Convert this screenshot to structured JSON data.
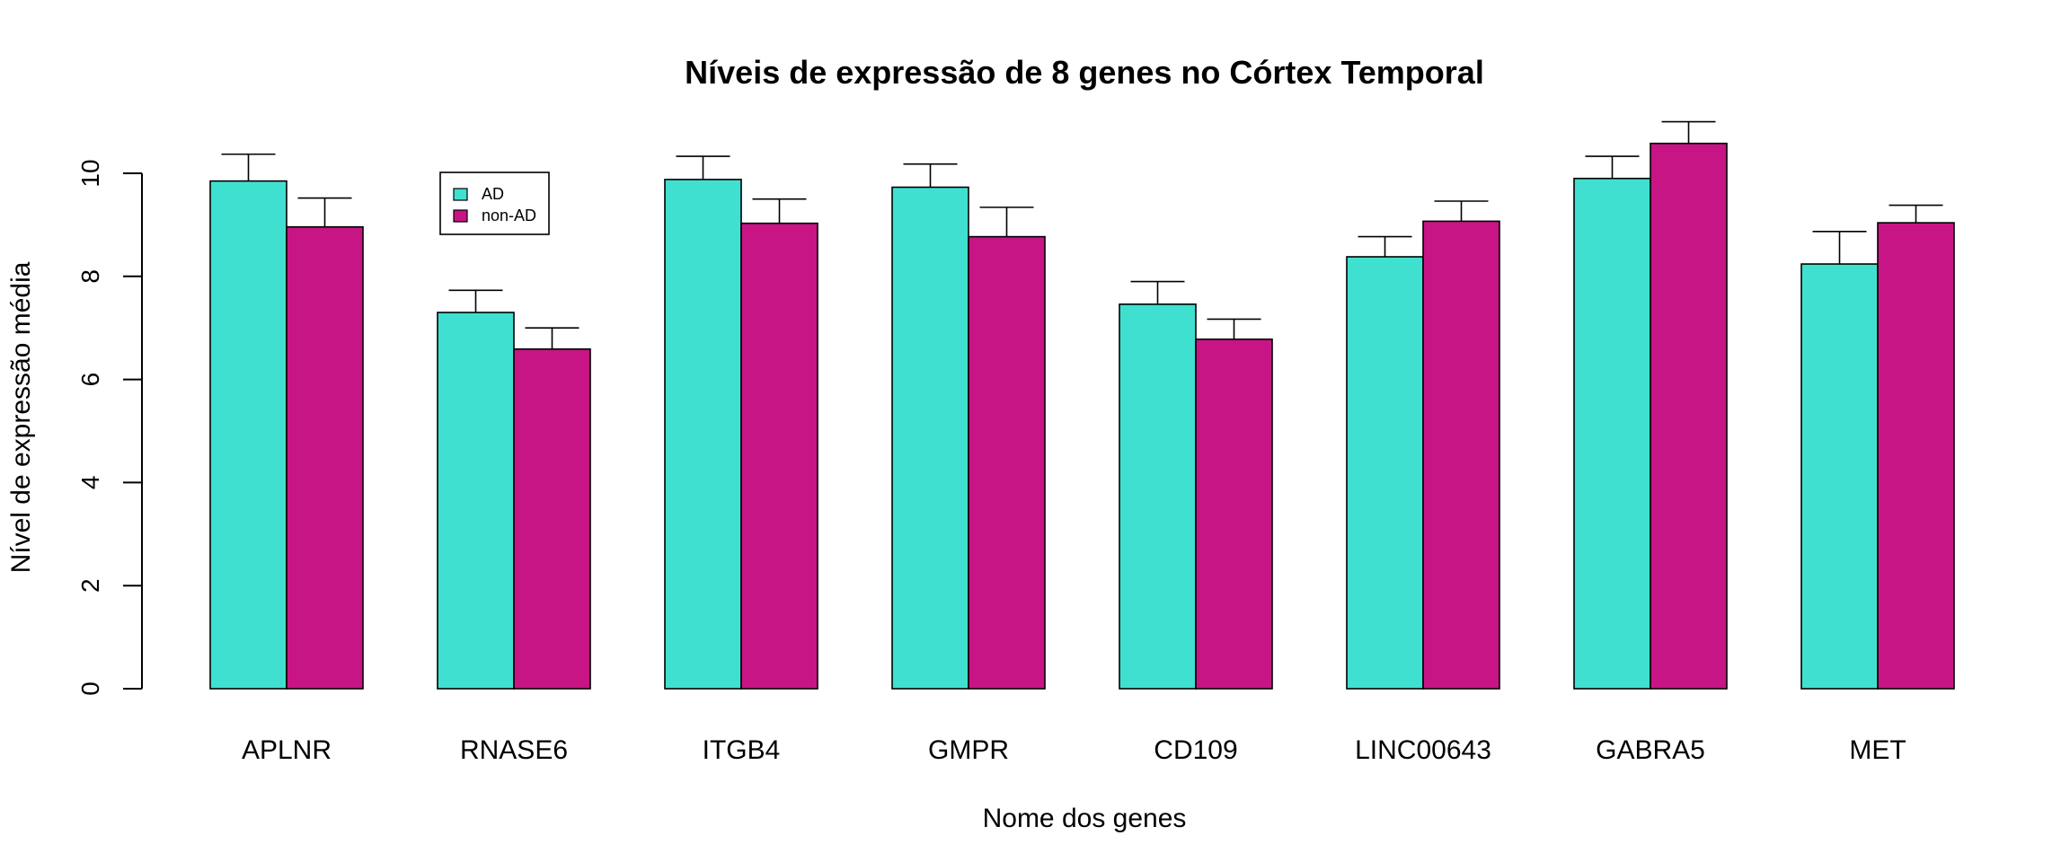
{
  "chart_data": {
    "type": "bar",
    "title": "Níveis de expressão de 8 genes no Córtex Temporal",
    "xlabel": "Nome dos genes",
    "ylabel": "Nível de expressão média",
    "categories": [
      "APLNR",
      "RNASE6",
      "ITGB4",
      "GMPR",
      "CD109",
      "LINC00643",
      "GABRA5",
      "MET"
    ],
    "series": [
      {
        "name": "AD",
        "color": "#40E0D0",
        "values": [
          9.85,
          7.3,
          9.88,
          9.73,
          7.46,
          8.38,
          9.9,
          8.24
        ],
        "error_upper": [
          10.37,
          7.73,
          10.33,
          10.18,
          7.9,
          8.77,
          10.33,
          8.87
        ]
      },
      {
        "name": "non-AD",
        "color": "#C71585",
        "values": [
          8.96,
          6.59,
          9.03,
          8.77,
          6.78,
          9.07,
          10.58,
          9.04
        ],
        "error_upper": [
          9.52,
          7.0,
          9.5,
          9.34,
          7.17,
          9.46,
          11.0,
          9.38
        ]
      }
    ],
    "yticks": [
      0,
      2,
      4,
      6,
      8,
      10
    ],
    "ylim": [
      0,
      11.2
    ],
    "grid": false,
    "legend_position": "top-left"
  }
}
